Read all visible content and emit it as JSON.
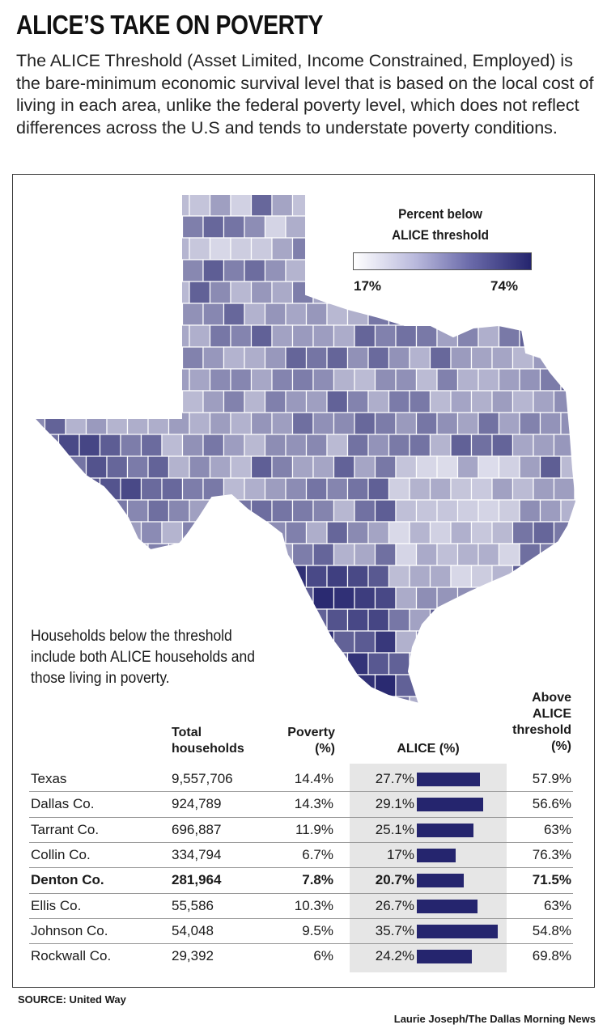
{
  "header": {
    "title": "ALICE’S TAKE ON POVERTY",
    "intro": "The ALICE Threshold (Asset Limited, Income Constrained, Employed) is the bare-minimum economic survival level that is based on the local cost of living in each area, unlike the federal poverty level, which does not reflect differences across the U.S and tends to understate poverty conditions."
  },
  "legend": {
    "title_line1": "Percent below",
    "title_line2": "ALICE threshold",
    "min_label": "17%",
    "max_label": "74%",
    "color_low": "#ffffff",
    "color_high": "#25256e"
  },
  "map": {
    "region": "Texas counties",
    "fill_low": "#f4f4fa",
    "fill_high": "#25256e",
    "border_color": "#ffffff"
  },
  "note": "Households below the threshold include both ALICE households and those living in poverty.",
  "table": {
    "headers": {
      "total_line1": "Total",
      "total_line2": "households",
      "poverty_line1": "Poverty",
      "poverty_line2": "(%)",
      "alice": "ALICE (%)",
      "above_line1": "Above",
      "above_line2": "ALICE",
      "above_line3": "threshold",
      "above_line4": "(%)"
    },
    "bar_color": "#25256e",
    "rows": [
      {
        "name": "Texas",
        "total": "9,557,706",
        "poverty": "14.4%",
        "alice": "27.7%",
        "alice_value": 27.7,
        "above": "57.9%"
      },
      {
        "name": "Dallas Co.",
        "total": "924,789",
        "poverty": "14.3%",
        "alice": "29.1%",
        "alice_value": 29.1,
        "above": "56.6%"
      },
      {
        "name": "Tarrant Co.",
        "total": "696,887",
        "poverty": "11.9%",
        "alice": "25.1%",
        "alice_value": 25.1,
        "above": "63%"
      },
      {
        "name": "Collin Co.",
        "total": "334,794",
        "poverty": "6.7%",
        "alice": "17%",
        "alice_value": 17,
        "above": "76.3%"
      },
      {
        "name": "Denton Co.",
        "total": "281,964",
        "poverty": "7.8%",
        "alice": "20.7%",
        "alice_value": 20.7,
        "above": "71.5%",
        "highlight": true
      },
      {
        "name": "Ellis Co.",
        "total": "55,586",
        "poverty": "10.3%",
        "alice": "26.7%",
        "alice_value": 26.7,
        "above": "63%"
      },
      {
        "name": "Johnson Co.",
        "total": "54,048",
        "poverty": "9.5%",
        "alice": "35.7%",
        "alice_value": 35.7,
        "above": "54.8%"
      },
      {
        "name": "Rockwall Co.",
        "total": "29,392",
        "poverty": "6%",
        "alice": "24.2%",
        "alice_value": 24.2,
        "above": "69.8%"
      }
    ]
  },
  "source": "SOURCE: United Way",
  "credit": "Laurie Joseph/The Dallas Morning News"
}
